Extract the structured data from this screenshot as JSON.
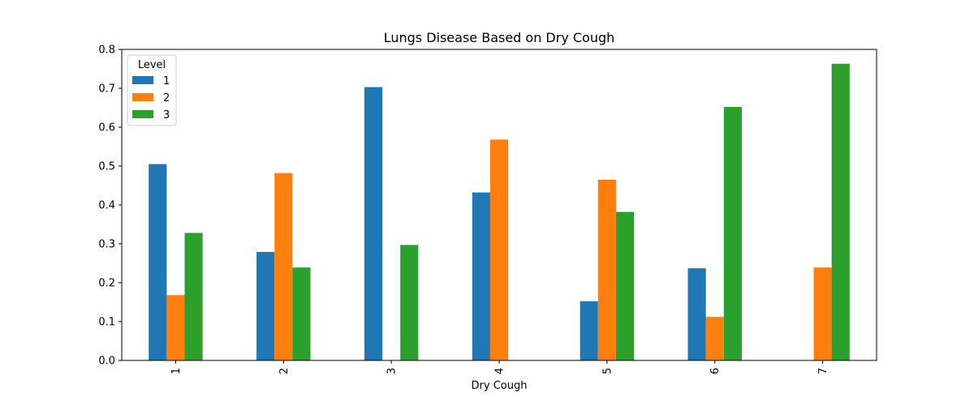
{
  "chart_data": {
    "type": "bar",
    "title": "Lungs Disease Based on Dry Cough",
    "xlabel": "Dry Cough",
    "ylabel": "",
    "categories": [
      "1",
      "2",
      "3",
      "4",
      "5",
      "6",
      "7"
    ],
    "ylim": [
      0,
      0.8
    ],
    "yticks": [
      "0.0",
      "0.1",
      "0.2",
      "0.3",
      "0.4",
      "0.5",
      "0.6",
      "0.7",
      "0.8"
    ],
    "grid": false,
    "legend": {
      "title": "Level",
      "position": "top-left"
    },
    "series": [
      {
        "name": "1",
        "color": "#1f77b4",
        "values": [
          0.505,
          0.279,
          0.703,
          0.432,
          0.152,
          0.237,
          0
        ]
      },
      {
        "name": "2",
        "color": "#ff7f0e",
        "values": [
          0.168,
          0.482,
          0,
          0.568,
          0.465,
          0.112,
          0.239
        ]
      },
      {
        "name": "3",
        "color": "#2ca02c",
        "values": [
          0.328,
          0.239,
          0.297,
          0,
          0.382,
          0.652,
          0.763
        ]
      }
    ]
  }
}
